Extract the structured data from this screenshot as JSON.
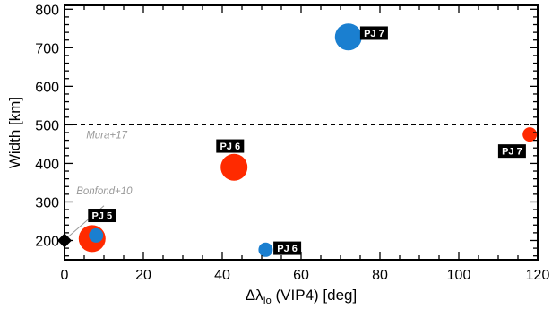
{
  "chart_data": {
    "type": "scatter",
    "title": "",
    "xlabel_prefix": "Δλ",
    "xlabel_sub": "Io",
    "xlabel_suffix": " (VIP4) [deg]",
    "ylabel": "Width [km]",
    "xlim": [
      0,
      120
    ],
    "ylim": [
      150,
      810
    ],
    "xticks": [
      0,
      20,
      40,
      60,
      80,
      100,
      120
    ],
    "yticks": [
      200,
      300,
      400,
      500,
      600,
      700,
      800
    ],
    "grid": false,
    "colors": {
      "red": "#ff2a00",
      "blue": "#1a7fd0",
      "dashed": "#000000",
      "annotation": "#999999"
    },
    "points": [
      {
        "x": 7,
        "y": 205,
        "color": "red",
        "size": "large"
      },
      {
        "x": 8,
        "y": 213,
        "color": "blue",
        "size": "small"
      },
      {
        "x": 43,
        "y": 390,
        "color": "red",
        "size": "large"
      },
      {
        "x": 51,
        "y": 176,
        "color": "blue",
        "size": "small"
      },
      {
        "x": 72,
        "y": 728,
        "color": "blue",
        "size": "large"
      },
      {
        "x": 118,
        "y": 475,
        "color": "red",
        "size": "small"
      }
    ],
    "reference_point": {
      "x": 0,
      "y": 200,
      "marker": "diamond",
      "label": "Bonfond+10"
    },
    "reference_line": {
      "y": 500,
      "style": "dashed",
      "label": "Mura+17"
    },
    "badges": [
      {
        "text": "PJ 5",
        "x": 9.5,
        "y": 265
      },
      {
        "text": "PJ 6",
        "x": 42,
        "y": 445
      },
      {
        "text": "PJ 6",
        "x": 56.5,
        "y": 180
      },
      {
        "text": "PJ 7",
        "x": 78.5,
        "y": 738
      },
      {
        "text": "PJ 7",
        "x": 113.5,
        "y": 432
      }
    ]
  }
}
